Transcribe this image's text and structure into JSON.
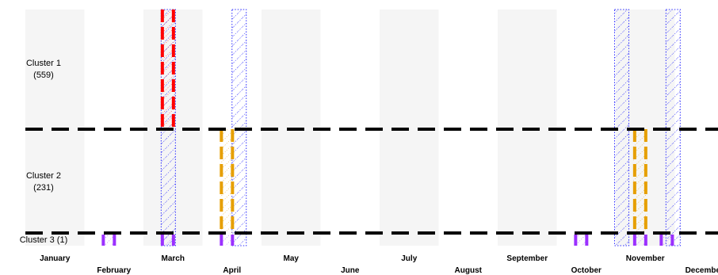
{
  "chart_data": {
    "type": "heatmap",
    "title": "",
    "xlabel": "",
    "ylabel": "",
    "months": [
      "January",
      "February",
      "March",
      "April",
      "May",
      "June",
      "July",
      "August",
      "September",
      "October",
      "November",
      "December"
    ],
    "clusters": [
      {
        "label": "Cluster 1",
        "count": "(559)"
      },
      {
        "label": "Cluster 2",
        "count": "(231)"
      },
      {
        "label": "Cluster 3 (1)",
        "count": ""
      }
    ],
    "colors": {
      "red": "#ff0000",
      "orange": "#e69f00",
      "purple": "#9b30ff",
      "blue": "#3030ff",
      "shade": "#f5f5f5",
      "divider": "#000000"
    },
    "markers": [
      {
        "cluster": 0,
        "month": 3.3,
        "color": "red"
      },
      {
        "cluster": 1,
        "month": 4.3,
        "color": "orange"
      },
      {
        "cluster": 1,
        "month": 11.3,
        "color": "orange"
      },
      {
        "cluster": 2,
        "month": 2.3,
        "color": "purple"
      },
      {
        "cluster": 2,
        "month": 3.3,
        "color": "purple"
      },
      {
        "cluster": 2,
        "month": 4.3,
        "color": "purple"
      },
      {
        "cluster": 2,
        "month": 10.3,
        "color": "purple"
      },
      {
        "cluster": 2,
        "month": 11.3,
        "color": "purple"
      },
      {
        "cluster": 2,
        "month": 11.75,
        "color": "purple"
      }
    ],
    "highlight_periods": [
      {
        "month": 3.3,
        "color": "blue"
      },
      {
        "month": 4.5,
        "color": "blue"
      },
      {
        "month": 10.98,
        "color": "blue"
      },
      {
        "month": 11.85,
        "color": "blue"
      }
    ]
  }
}
